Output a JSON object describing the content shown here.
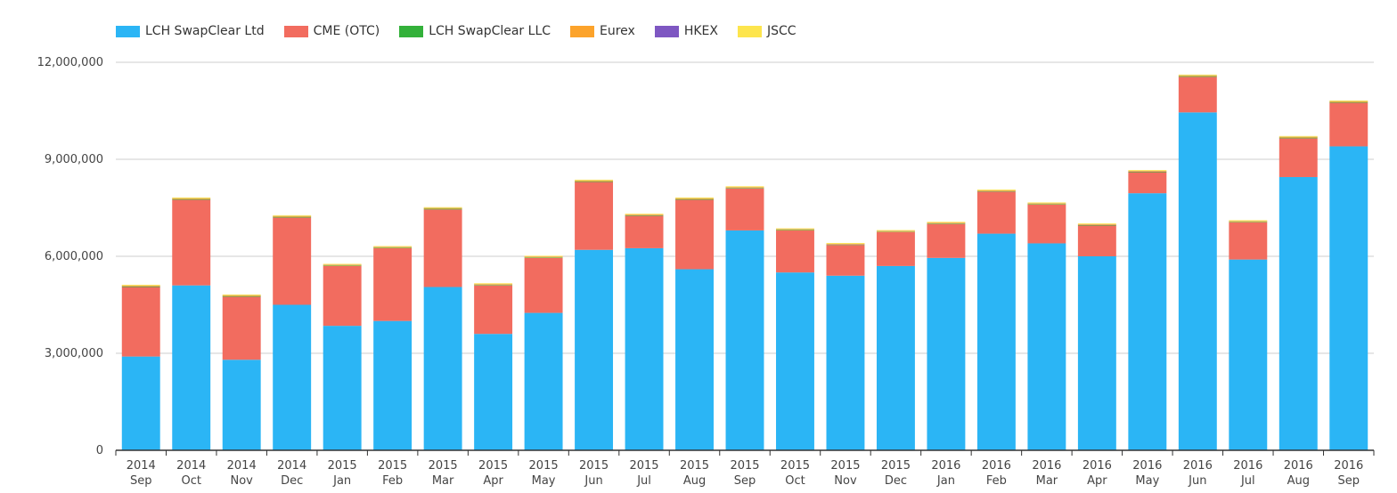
{
  "chart_data": {
    "type": "bar",
    "stacked": true,
    "title": "",
    "xlabel": "",
    "ylabel": "",
    "ylim": [
      0,
      12000000
    ],
    "yticks": [
      "0",
      "3,000,000",
      "6,000,000",
      "9,000,000",
      "12,000,000"
    ],
    "ytick_values": [
      0,
      3000000,
      6000000,
      9000000,
      12000000
    ],
    "grid": true,
    "legend_position": "top-left",
    "categories": [
      {
        "year": "2014",
        "month": "Sep"
      },
      {
        "year": "2014",
        "month": "Oct"
      },
      {
        "year": "2014",
        "month": "Nov"
      },
      {
        "year": "2014",
        "month": "Dec"
      },
      {
        "year": "2015",
        "month": "Jan"
      },
      {
        "year": "2015",
        "month": "Feb"
      },
      {
        "year": "2015",
        "month": "Mar"
      },
      {
        "year": "2015",
        "month": "Apr"
      },
      {
        "year": "2015",
        "month": "May"
      },
      {
        "year": "2015",
        "month": "Jun"
      },
      {
        "year": "2015",
        "month": "Jul"
      },
      {
        "year": "2015",
        "month": "Aug"
      },
      {
        "year": "2015",
        "month": "Sep"
      },
      {
        "year": "2015",
        "month": "Oct"
      },
      {
        "year": "2015",
        "month": "Nov"
      },
      {
        "year": "2015",
        "month": "Dec"
      },
      {
        "year": "2016",
        "month": "Jan"
      },
      {
        "year": "2016",
        "month": "Feb"
      },
      {
        "year": "2016",
        "month": "Mar"
      },
      {
        "year": "2016",
        "month": "Apr"
      },
      {
        "year": "2016",
        "month": "May"
      },
      {
        "year": "2016",
        "month": "Jun"
      },
      {
        "year": "2016",
        "month": "Jul"
      },
      {
        "year": "2016",
        "month": "Aug"
      },
      {
        "year": "2016",
        "month": "Sep"
      }
    ],
    "series": [
      {
        "name": "LCH SwapClear Ltd",
        "color": "#2bb5f5",
        "values": [
          2900000,
          5100000,
          2800000,
          4500000,
          3850000,
          4000000,
          5050000,
          3600000,
          4250000,
          6200000,
          6250000,
          5600000,
          6800000,
          5500000,
          5400000,
          5700000,
          5950000,
          6700000,
          6400000,
          6000000,
          7950000,
          10450000,
          5900000,
          8450000,
          9400000
        ]
      },
      {
        "name": "CME (OTC)",
        "color": "#f26c5f",
        "values": [
          2150000,
          2650000,
          1950000,
          2700000,
          1850000,
          2250000,
          2400000,
          1500000,
          1700000,
          2100000,
          1000000,
          2150000,
          1300000,
          1300000,
          950000,
          1050000,
          1050000,
          1300000,
          1200000,
          950000,
          650000,
          1100000,
          1150000,
          1200000,
          1350000
        ]
      },
      {
        "name": "LCH SwapClear LLC",
        "color": "#33b13a",
        "values": [
          20000,
          20000,
          20000,
          20000,
          15000,
          15000,
          20000,
          15000,
          15000,
          20000,
          15000,
          20000,
          15000,
          15000,
          10000,
          10000,
          15000,
          15000,
          15000,
          15000,
          15000,
          20000,
          15000,
          20000,
          20000
        ]
      },
      {
        "name": "Eurex",
        "color": "#fca32b",
        "values": [
          20000,
          20000,
          20000,
          20000,
          20000,
          20000,
          20000,
          20000,
          20000,
          20000,
          20000,
          20000,
          20000,
          20000,
          20000,
          20000,
          20000,
          20000,
          20000,
          20000,
          20000,
          20000,
          20000,
          20000,
          20000
        ]
      },
      {
        "name": "HKEX",
        "color": "#7e57c2",
        "values": [
          5000,
          5000,
          5000,
          5000,
          5000,
          5000,
          5000,
          5000,
          5000,
          5000,
          5000,
          5000,
          5000,
          5000,
          5000,
          5000,
          5000,
          5000,
          5000,
          5000,
          5000,
          5000,
          5000,
          5000,
          5000
        ]
      },
      {
        "name": "JSCC",
        "color": "#fde54d",
        "values": [
          25000,
          25000,
          25000,
          25000,
          25000,
          25000,
          25000,
          25000,
          25000,
          25000,
          25000,
          25000,
          25000,
          25000,
          25000,
          25000,
          25000,
          25000,
          25000,
          25000,
          25000,
          25000,
          25000,
          25000,
          25000
        ]
      }
    ]
  }
}
